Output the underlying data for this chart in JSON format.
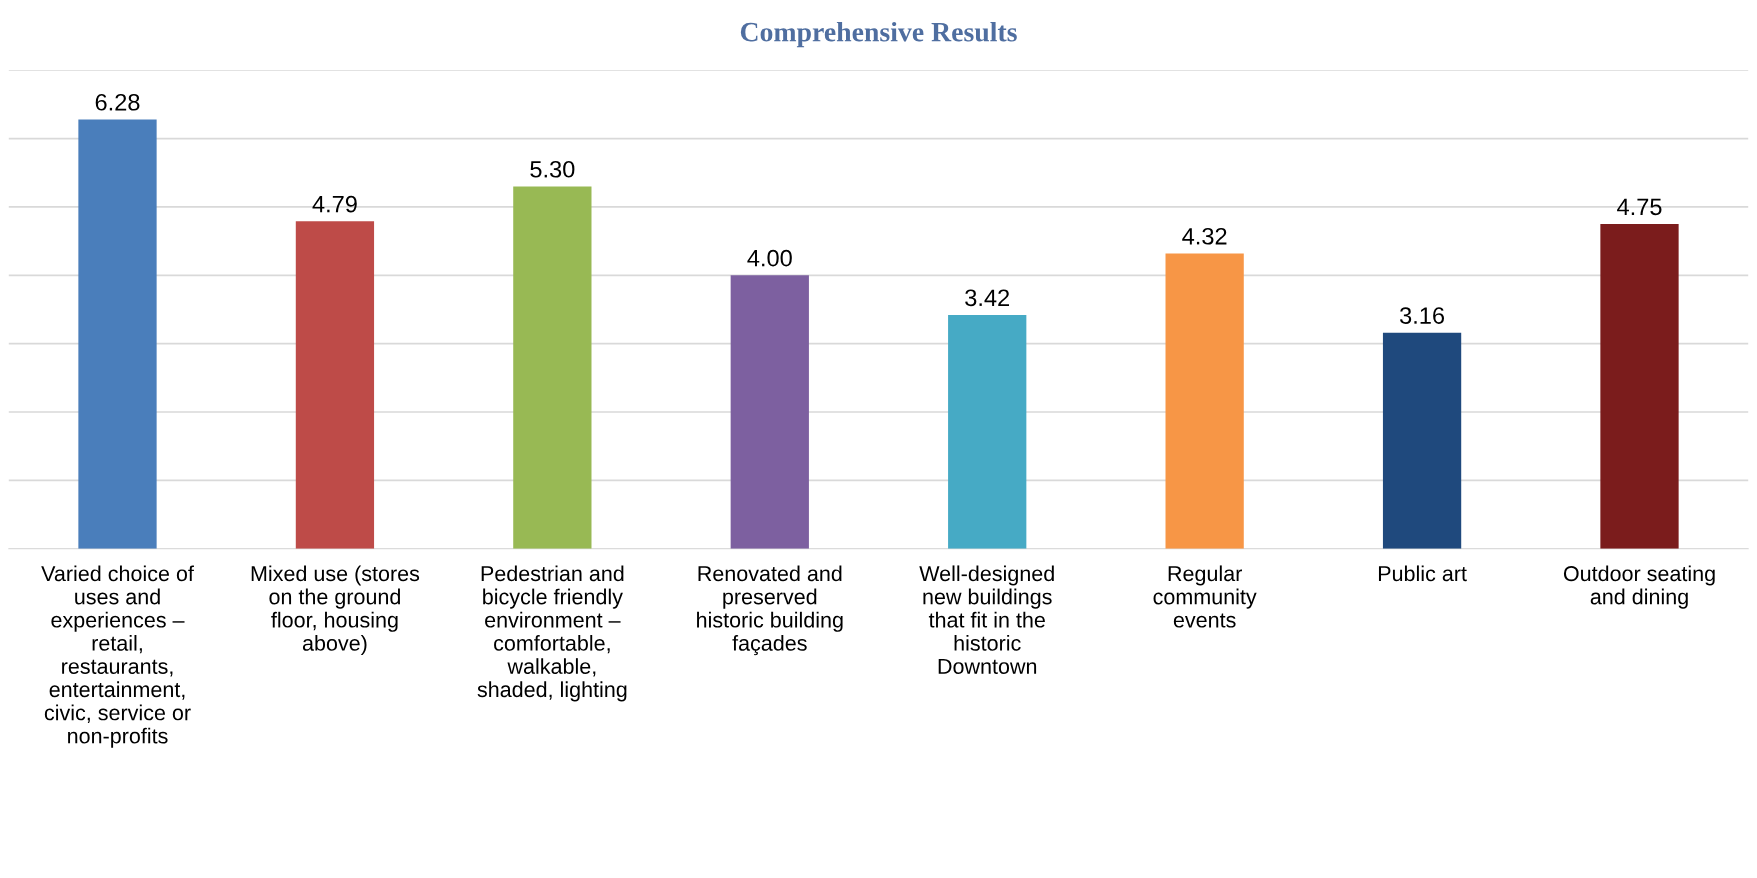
{
  "chart_data": {
    "type": "bar",
    "title": "Comprehensive Results",
    "categories": [
      "Varied choice of\nuses and\nexperiences –\nretail,\nrestaurants,\nentertainment,\ncivic, service or\nnon-profits",
      "Mixed use (stores\non the ground\nfloor, housing\nabove)",
      "Pedestrian and\nbicycle friendly\nenvironment –\ncomfortable,\nwalkable,\nshaded, lighting",
      "Renovated and\npreserved\nhistoric building\nfaçades",
      "Well-designed\nnew buildings\nthat fit in the\nhistoric\nDowntown",
      "Regular\ncommunity\nevents",
      "Public art",
      "Outdoor seating\nand dining"
    ],
    "values": [
      6.28,
      4.79,
      5.3,
      4.0,
      3.42,
      4.32,
      3.16,
      4.75
    ],
    "value_labels": [
      "6.28",
      "4.79",
      "5.30",
      "4.00",
      "3.42",
      "4.32",
      "3.16",
      "4.75"
    ],
    "colors": [
      "#4a7ebb",
      "#be4b48",
      "#98b954",
      "#7d60a0",
      "#46aac5",
      "#f79646",
      "#1f497d",
      "#7b1c1c"
    ],
    "ylim": [
      0,
      7
    ],
    "yticks": [
      {
        "value": 0,
        "label": null
      },
      {
        "value": 1,
        "label": null
      },
      {
        "value": 2,
        "label": null
      },
      {
        "value": 3,
        "label": null
      },
      {
        "value": 4,
        "label": null
      },
      {
        "value": 5,
        "label": null
      },
      {
        "value": 6,
        "label": null
      },
      {
        "value": 7,
        "label": null
      }
    ],
    "tick_labels": "x",
    "grid": "y",
    "legend": false
  }
}
